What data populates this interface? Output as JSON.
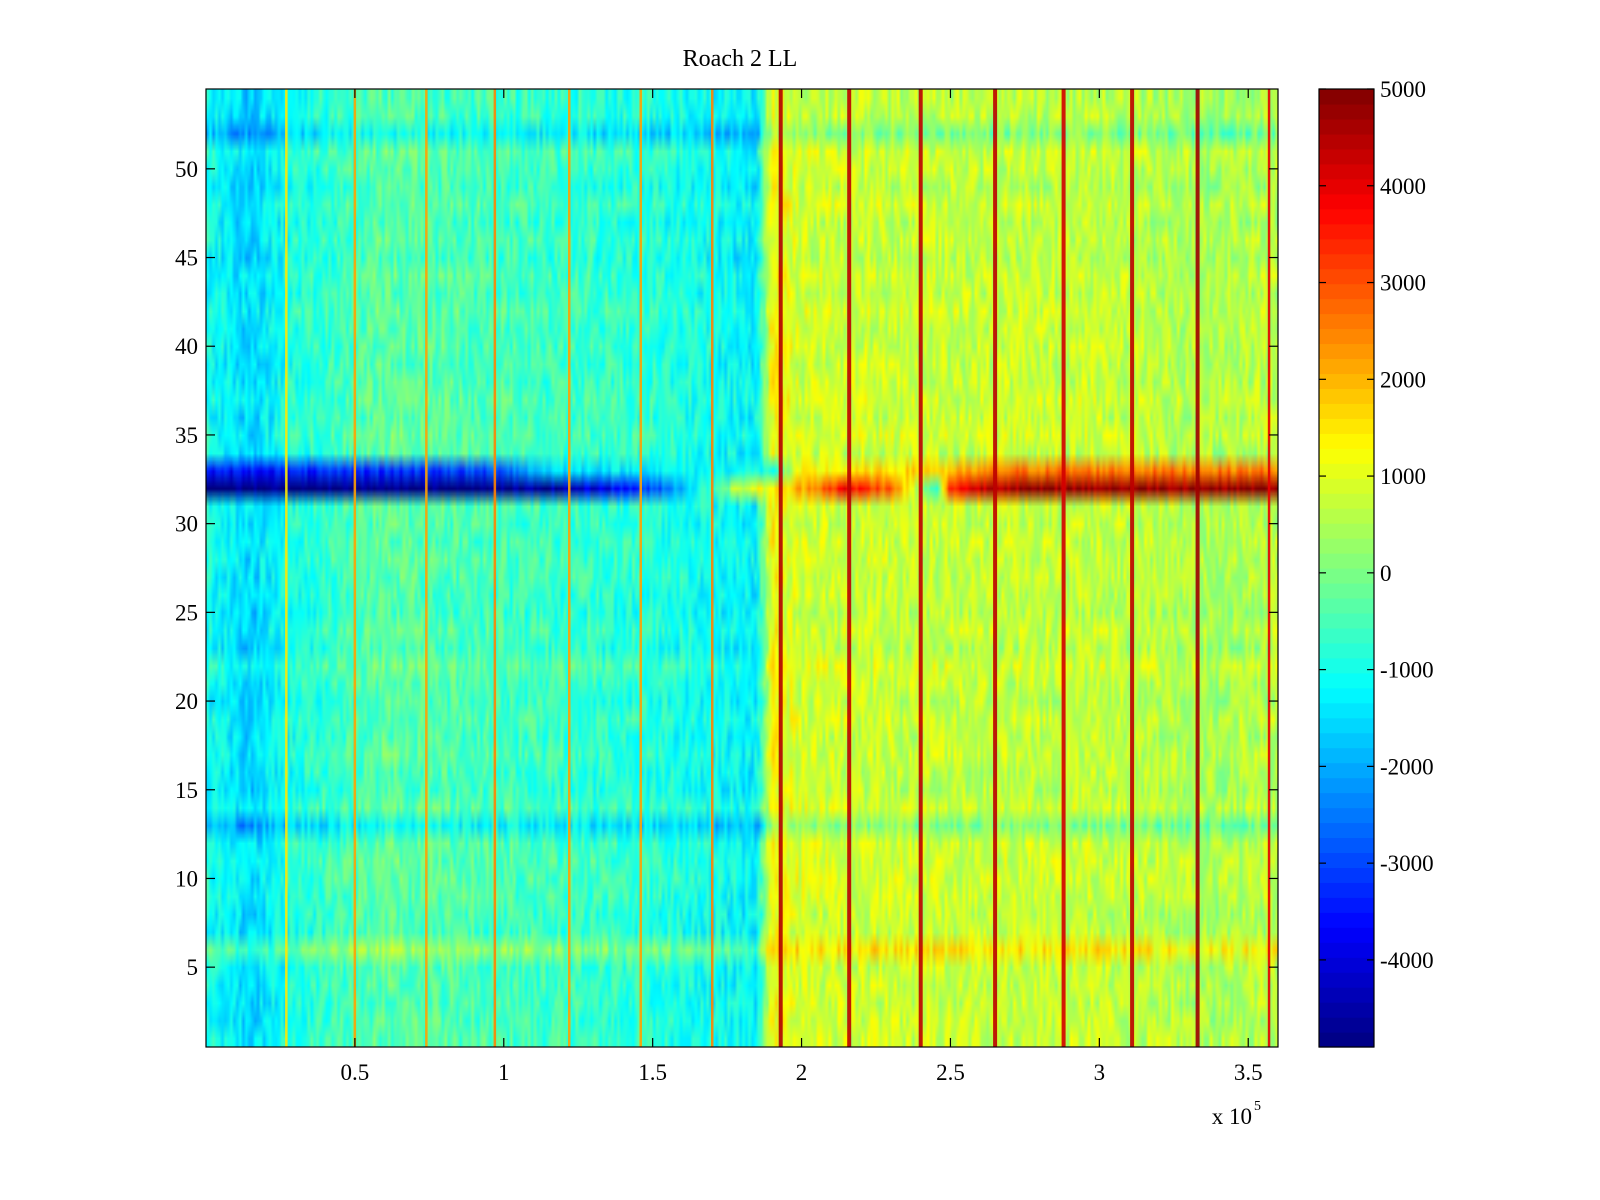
{
  "chart_data": {
    "type": "heatmap",
    "title": "Roach 2 LL",
    "colormap": "jet",
    "x_range": [
      0,
      360000
    ],
    "x_multiplier_label": {
      "base": "x 10",
      "exponent": "5"
    },
    "x_ticks": [
      {
        "value": 50000,
        "label": "0.5"
      },
      {
        "value": 100000,
        "label": "1"
      },
      {
        "value": 150000,
        "label": "1.5"
      },
      {
        "value": 200000,
        "label": "2"
      },
      {
        "value": 250000,
        "label": "2.5"
      },
      {
        "value": 300000,
        "label": "3"
      },
      {
        "value": 350000,
        "label": "3.5"
      }
    ],
    "y_range": [
      0.5,
      54.5
    ],
    "y_ticks": [
      {
        "value": 5,
        "label": "5"
      },
      {
        "value": 10,
        "label": "10"
      },
      {
        "value": 15,
        "label": "15"
      },
      {
        "value": 20,
        "label": "20"
      },
      {
        "value": 25,
        "label": "25"
      },
      {
        "value": 30,
        "label": "30"
      },
      {
        "value": 35,
        "label": "35"
      },
      {
        "value": 40,
        "label": "40"
      },
      {
        "value": 45,
        "label": "45"
      },
      {
        "value": 50,
        "label": "50"
      }
    ],
    "rows": 54,
    "color_range": [
      -4900,
      5000
    ],
    "colorbar_ticks": [
      {
        "value": 5000,
        "label": "5000"
      },
      {
        "value": 4000,
        "label": "4000"
      },
      {
        "value": 3000,
        "label": "3000"
      },
      {
        "value": 2000,
        "label": "2000"
      },
      {
        "value": 1000,
        "label": "1000"
      },
      {
        "value": 0,
        "label": "0"
      },
      {
        "value": -1000,
        "label": "-1000"
      },
      {
        "value": -2000,
        "label": "-2000"
      },
      {
        "value": -3000,
        "label": "-3000"
      },
      {
        "value": -4000,
        "label": "-4000"
      }
    ],
    "baseline_profile": [
      {
        "x": 0,
        "value": -1000
      },
      {
        "x": 15000,
        "value": -1600
      },
      {
        "x": 30000,
        "value": -900
      },
      {
        "x": 60000,
        "value": -300
      },
      {
        "x": 100000,
        "value": -550
      },
      {
        "x": 150000,
        "value": -800
      },
      {
        "x": 185000,
        "value": -1300
      },
      {
        "x": 190000,
        "value": 1300
      },
      {
        "x": 200000,
        "value": 800
      },
      {
        "x": 250000,
        "value": 700
      },
      {
        "x": 300000,
        "value": 700
      },
      {
        "x": 340000,
        "value": 450
      },
      {
        "x": 360000,
        "value": 600
      }
    ],
    "vertical_stripes": [
      {
        "x": 27000,
        "value": 1500
      },
      {
        "x": 50000,
        "value": 2200
      },
      {
        "x": 74000,
        "value": 2200
      },
      {
        "x": 97000,
        "value": 2500
      },
      {
        "x": 122000,
        "value": 2200
      },
      {
        "x": 146000,
        "value": 2200
      },
      {
        "x": 170000,
        "value": 2500
      },
      {
        "x": 193000,
        "value": 4500
      },
      {
        "x": 216000,
        "value": 4400
      },
      {
        "x": 240000,
        "value": 4400
      },
      {
        "x": 265000,
        "value": 4400
      },
      {
        "x": 288000,
        "value": 4200
      },
      {
        "x": 311000,
        "value": 4400
      },
      {
        "x": 333000,
        "value": 4700
      },
      {
        "x": 357000,
        "value": 4000
      }
    ],
    "anomalous_rows": [
      {
        "row": 32,
        "profile": [
          {
            "x": 0,
            "value": -4900
          },
          {
            "x": 95000,
            "value": -4900
          },
          {
            "x": 120000,
            "value": -4500
          },
          {
            "x": 150000,
            "value": -3000
          },
          {
            "x": 180000,
            "value": 800
          },
          {
            "x": 195000,
            "value": 1600
          },
          {
            "x": 215000,
            "value": 3800
          },
          {
            "x": 230000,
            "value": 2800
          },
          {
            "x": 245000,
            "value": -1000
          },
          {
            "x": 250000,
            "value": 3500
          },
          {
            "x": 265000,
            "value": 4700
          },
          {
            "x": 360000,
            "value": 4900
          }
        ]
      },
      {
        "row": 33,
        "profile": [
          {
            "x": 0,
            "value": -3600
          },
          {
            "x": 95000,
            "value": -3000
          },
          {
            "x": 115000,
            "value": -1500
          },
          {
            "x": 190000,
            "value": -1000
          },
          {
            "x": 200000,
            "value": 1200
          },
          {
            "x": 250000,
            "value": 1800
          },
          {
            "x": 270000,
            "value": 2600
          },
          {
            "x": 360000,
            "value": 2600
          }
        ]
      }
    ],
    "row_offsets": [
      {
        "row": 6,
        "value": 900
      },
      {
        "row": 13,
        "value": -700
      },
      {
        "row": 52,
        "value": -600
      },
      {
        "row": 22,
        "value": 200
      }
    ]
  }
}
